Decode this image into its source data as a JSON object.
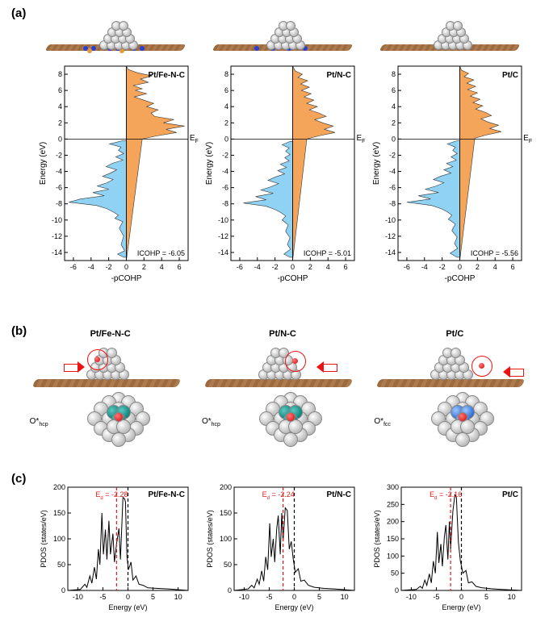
{
  "section_labels": {
    "a": "(a)",
    "b": "(b)",
    "c": "(c)"
  },
  "systems": [
    "Pt/Fe-N-C",
    "Pt/N-C",
    "Pt/C"
  ],
  "colors": {
    "antibonding": "#f5a55a",
    "bonding": "#8fd2f4",
    "cohp_stroke": "#333333",
    "pdos_line": "#000000",
    "ed_line": "#e11919",
    "ef_line": "#000000",
    "grid": "#000000",
    "ring": "#e11919",
    "atom_pt": "#c9c9c9",
    "atom_c": "#9b6a3f",
    "atom_n": "#2a3fd4",
    "atom_fe": "#e49b3c",
    "atom_o": "#d80000",
    "atom_teal": "#158f86",
    "atom_ptBlue": "#3d7ae0"
  },
  "cohp": {
    "ylabel": "Energy (eV)",
    "xlabel": "-pCOHP",
    "ef_label": "E",
    "ef_sub": "F",
    "yticks": [
      -14,
      -12,
      -10,
      -8,
      -6,
      -4,
      -2,
      0,
      2,
      4,
      6,
      8
    ],
    "xticks": [
      -6,
      -4,
      -2,
      0,
      2,
      4,
      6
    ],
    "ylim": [
      -15,
      9
    ],
    "xlim": [
      -7,
      7
    ],
    "icohp_prefix": "ICOHP = ",
    "panels": [
      {
        "title": "Pt/Fe-N-C",
        "icohp": "-6.05",
        "curve": [
          [
            0,
            9
          ],
          [
            0.2,
            8.6
          ],
          [
            1.2,
            8.2
          ],
          [
            2.9,
            7.8
          ],
          [
            1.6,
            7.4
          ],
          [
            2.5,
            7.0
          ],
          [
            0.8,
            6.6
          ],
          [
            1.8,
            6.2
          ],
          [
            1.0,
            6.0
          ],
          [
            2.3,
            5.6
          ],
          [
            0.9,
            5.2
          ],
          [
            2.0,
            4.8
          ],
          [
            3.1,
            4.4
          ],
          [
            2.3,
            4.0
          ],
          [
            3.6,
            3.6
          ],
          [
            2.8,
            3.2
          ],
          [
            3.2,
            2.8
          ],
          [
            5.4,
            2.4
          ],
          [
            4.2,
            2.0
          ],
          [
            6.6,
            1.6
          ],
          [
            4.5,
            1.2
          ],
          [
            5.7,
            0.8
          ],
          [
            3.5,
            0.4
          ],
          [
            1.8,
            0.0
          ],
          [
            -0.4,
            -0.2
          ],
          [
            -1.9,
            -0.6
          ],
          [
            -0.6,
            -1.0
          ],
          [
            -0.9,
            -1.4
          ],
          [
            -0.3,
            -1.8
          ],
          [
            -1.2,
            -2.2
          ],
          [
            -0.4,
            -2.6
          ],
          [
            -1.6,
            -3.0
          ],
          [
            -2.3,
            -3.4
          ],
          [
            -1.1,
            -3.8
          ],
          [
            -1.8,
            -4.2
          ],
          [
            -2.7,
            -4.6
          ],
          [
            -1.5,
            -5.0
          ],
          [
            -2.2,
            -5.4
          ],
          [
            -3.3,
            -5.8
          ],
          [
            -2.0,
            -6.2
          ],
          [
            -3.8,
            -6.6
          ],
          [
            -2.5,
            -7.0
          ],
          [
            -5.2,
            -7.4
          ],
          [
            -6.5,
            -7.8
          ],
          [
            -3.4,
            -8.2
          ],
          [
            -2.2,
            -8.6
          ],
          [
            -1.5,
            -9.0
          ],
          [
            -0.9,
            -9.4
          ],
          [
            -1.3,
            -9.8
          ],
          [
            -0.4,
            -10.2
          ],
          [
            -0.8,
            -11.0
          ],
          [
            -0.3,
            -12.0
          ],
          [
            -0.6,
            -13.0
          ],
          [
            -0.2,
            -13.8
          ],
          [
            -1.0,
            -14.2
          ],
          [
            -0.3,
            -14.6
          ],
          [
            0,
            -15
          ]
        ]
      },
      {
        "title": "Pt/N-C",
        "icohp": "-5.01",
        "curve": [
          [
            0,
            9
          ],
          [
            0.3,
            8.4
          ],
          [
            1.1,
            8.0
          ],
          [
            0.6,
            7.6
          ],
          [
            1.7,
            7.2
          ],
          [
            0.9,
            6.8
          ],
          [
            1.9,
            6.4
          ],
          [
            1.0,
            6.0
          ],
          [
            2.1,
            5.6
          ],
          [
            1.3,
            5.2
          ],
          [
            2.4,
            4.8
          ],
          [
            1.6,
            4.4
          ],
          [
            2.8,
            4.0
          ],
          [
            1.9,
            3.6
          ],
          [
            3.0,
            3.2
          ],
          [
            3.8,
            2.8
          ],
          [
            2.5,
            2.4
          ],
          [
            3.4,
            2.0
          ],
          [
            4.6,
            1.6
          ],
          [
            3.6,
            1.2
          ],
          [
            4.8,
            0.8
          ],
          [
            3.0,
            0.4
          ],
          [
            1.6,
            0.0
          ],
          [
            -0.3,
            -0.3
          ],
          [
            -1.2,
            -0.7
          ],
          [
            -0.4,
            -1.1
          ],
          [
            -0.8,
            -1.5
          ],
          [
            -0.3,
            -1.9
          ],
          [
            -0.9,
            -2.3
          ],
          [
            -0.4,
            -2.7
          ],
          [
            -1.4,
            -3.1
          ],
          [
            -0.7,
            -3.5
          ],
          [
            -1.7,
            -3.9
          ],
          [
            -0.9,
            -4.3
          ],
          [
            -2.0,
            -4.7
          ],
          [
            -2.8,
            -5.1
          ],
          [
            -1.6,
            -5.5
          ],
          [
            -2.5,
            -5.9
          ],
          [
            -3.6,
            -6.3
          ],
          [
            -2.2,
            -6.7
          ],
          [
            -4.2,
            -7.1
          ],
          [
            -3.0,
            -7.5
          ],
          [
            -5.6,
            -7.9
          ],
          [
            -3.0,
            -8.3
          ],
          [
            -2.0,
            -8.7
          ],
          [
            -1.3,
            -9.1
          ],
          [
            -0.8,
            -9.5
          ],
          [
            -1.2,
            -10.0
          ],
          [
            -0.5,
            -10.6
          ],
          [
            -0.8,
            -11.4
          ],
          [
            -0.3,
            -12.2
          ],
          [
            -0.6,
            -13.0
          ],
          [
            -0.25,
            -13.6
          ],
          [
            -1.0,
            -14.2
          ],
          [
            -0.3,
            -14.6
          ],
          [
            0,
            -15
          ]
        ]
      },
      {
        "title": "Pt/C",
        "icohp": "-5.56",
        "curve": [
          [
            0,
            9
          ],
          [
            0.2,
            8.5
          ],
          [
            1.0,
            8.1
          ],
          [
            0.5,
            7.7
          ],
          [
            1.6,
            7.3
          ],
          [
            0.8,
            6.9
          ],
          [
            1.8,
            6.5
          ],
          [
            0.9,
            6.1
          ],
          [
            2.0,
            5.7
          ],
          [
            1.2,
            5.3
          ],
          [
            2.3,
            4.9
          ],
          [
            1.5,
            4.5
          ],
          [
            2.6,
            4.1
          ],
          [
            1.8,
            3.7
          ],
          [
            2.9,
            3.3
          ],
          [
            3.6,
            2.9
          ],
          [
            2.4,
            2.5
          ],
          [
            3.2,
            2.1
          ],
          [
            4.4,
            1.7
          ],
          [
            3.4,
            1.3
          ],
          [
            4.7,
            0.9
          ],
          [
            3.0,
            0.5
          ],
          [
            1.7,
            0.1
          ],
          [
            -0.3,
            -0.2
          ],
          [
            -1.4,
            -0.6
          ],
          [
            -0.5,
            -1.0
          ],
          [
            -0.8,
            -1.4
          ],
          [
            -0.3,
            -1.8
          ],
          [
            -1.0,
            -2.2
          ],
          [
            -0.4,
            -2.6
          ],
          [
            -1.5,
            -3.0
          ],
          [
            -0.8,
            -3.4
          ],
          [
            -1.8,
            -3.8
          ],
          [
            -1.0,
            -4.2
          ],
          [
            -2.2,
            -4.6
          ],
          [
            -3.0,
            -5.0
          ],
          [
            -1.8,
            -5.4
          ],
          [
            -2.7,
            -5.8
          ],
          [
            -3.9,
            -6.2
          ],
          [
            -2.4,
            -6.6
          ],
          [
            -4.7,
            -7.0
          ],
          [
            -3.3,
            -7.4
          ],
          [
            -6.0,
            -7.8
          ],
          [
            -3.2,
            -8.2
          ],
          [
            -2.1,
            -8.6
          ],
          [
            -1.4,
            -9.0
          ],
          [
            -0.9,
            -9.4
          ],
          [
            -1.3,
            -9.9
          ],
          [
            -0.5,
            -10.5
          ],
          [
            -0.9,
            -11.3
          ],
          [
            -0.3,
            -12.1
          ],
          [
            -0.6,
            -12.9
          ],
          [
            -0.25,
            -13.5
          ],
          [
            -1.1,
            -14.1
          ],
          [
            -0.3,
            -14.6
          ],
          [
            0,
            -15
          ]
        ]
      }
    ]
  },
  "b": {
    "o_site_labels": [
      "O*",
      "O*",
      "O*"
    ],
    "o_site_subs": [
      "hcp",
      "hcp",
      "fcc"
    ]
  },
  "pdos": {
    "ylabel": "PDOS (states/eV)",
    "xlabel": "Energy (eV)",
    "xticks": [
      -10,
      -5,
      0,
      5,
      10
    ],
    "xlim": [
      -12,
      12
    ],
    "ed_label_prefix": "E",
    "ed_label_sub": "d",
    "ed_label_mid": " = ",
    "panels": [
      {
        "title": "Pt/Fe-N-C",
        "ed": "-2.28",
        "ylim": [
          0,
          200
        ],
        "yticks": [
          0,
          50,
          100,
          150,
          200
        ],
        "curve": [
          [
            -12,
            0
          ],
          [
            -9.5,
            2
          ],
          [
            -8.6,
            12
          ],
          [
            -8.2,
            6
          ],
          [
            -7.6,
            28
          ],
          [
            -7.2,
            14
          ],
          [
            -6.7,
            45
          ],
          [
            -6.3,
            22
          ],
          [
            -5.9,
            80
          ],
          [
            -5.6,
            50
          ],
          [
            -5.2,
            150
          ],
          [
            -4.9,
            70
          ],
          [
            -4.5,
            118
          ],
          [
            -4.2,
            60
          ],
          [
            -3.8,
            135
          ],
          [
            -3.5,
            70
          ],
          [
            -3.0,
            110
          ],
          [
            -2.7,
            55
          ],
          [
            -2.28,
            90
          ],
          [
            -1.8,
            120
          ],
          [
            -1.5,
            60
          ],
          [
            -1.0,
            180
          ],
          [
            -0.7,
            178
          ],
          [
            -0.5,
            172
          ],
          [
            -0.2,
            65
          ],
          [
            0.1,
            40
          ],
          [
            0.6,
            55
          ],
          [
            1.0,
            20
          ],
          [
            1.6,
            28
          ],
          [
            2.2,
            12
          ],
          [
            3.0,
            10
          ],
          [
            4.0,
            5
          ],
          [
            6.0,
            4
          ],
          [
            8.0,
            3
          ],
          [
            12,
            0
          ]
        ]
      },
      {
        "title": "Pt/N-C",
        "ed": "-2.24",
        "ylim": [
          0,
          200
        ],
        "yticks": [
          0,
          50,
          100,
          150,
          200
        ],
        "curve": [
          [
            -12,
            0
          ],
          [
            -9.2,
            3
          ],
          [
            -8.5,
            10
          ],
          [
            -8.0,
            5
          ],
          [
            -7.4,
            22
          ],
          [
            -7.0,
            12
          ],
          [
            -6.5,
            38
          ],
          [
            -6.1,
            18
          ],
          [
            -5.7,
            65
          ],
          [
            -5.3,
            40
          ],
          [
            -4.9,
            130
          ],
          [
            -4.6,
            65
          ],
          [
            -4.2,
            100
          ],
          [
            -3.9,
            55
          ],
          [
            -3.5,
            120
          ],
          [
            -3.2,
            145
          ],
          [
            -2.8,
            70
          ],
          [
            -2.5,
            150
          ],
          [
            -2.24,
            95
          ],
          [
            -1.8,
            160
          ],
          [
            -1.4,
            155
          ],
          [
            -1.0,
            80
          ],
          [
            -0.6,
            95
          ],
          [
            -0.2,
            60
          ],
          [
            0.2,
            35
          ],
          [
            0.8,
            42
          ],
          [
            1.3,
            18
          ],
          [
            2.0,
            20
          ],
          [
            2.8,
            10
          ],
          [
            4.0,
            6
          ],
          [
            6.0,
            4
          ],
          [
            8.0,
            3
          ],
          [
            12,
            0
          ]
        ]
      },
      {
        "title": "Pt/C",
        "ed": "-2.16",
        "ylim": [
          0,
          300
        ],
        "yticks": [
          0,
          50,
          100,
          150,
          200,
          250,
          300
        ],
        "curve": [
          [
            -12,
            0
          ],
          [
            -9.0,
            3
          ],
          [
            -8.2,
            12
          ],
          [
            -7.8,
            6
          ],
          [
            -7.3,
            30
          ],
          [
            -6.9,
            15
          ],
          [
            -6.4,
            48
          ],
          [
            -6.0,
            22
          ],
          [
            -5.6,
            85
          ],
          [
            -5.2,
            50
          ],
          [
            -4.8,
            170
          ],
          [
            -4.5,
            80
          ],
          [
            -4.1,
            135
          ],
          [
            -3.8,
            70
          ],
          [
            -3.4,
            155
          ],
          [
            -3.1,
            190
          ],
          [
            -2.7,
            90
          ],
          [
            -2.4,
            200
          ],
          [
            -2.16,
            120
          ],
          [
            -1.7,
            230
          ],
          [
            -1.3,
            278
          ],
          [
            -1.0,
            270
          ],
          [
            -0.6,
            140
          ],
          [
            -0.2,
            85
          ],
          [
            0.3,
            50
          ],
          [
            0.9,
            58
          ],
          [
            1.4,
            22
          ],
          [
            2.1,
            25
          ],
          [
            2.9,
            12
          ],
          [
            4.0,
            8
          ],
          [
            6.0,
            5
          ],
          [
            8.0,
            3
          ],
          [
            12,
            0
          ]
        ]
      }
    ]
  }
}
